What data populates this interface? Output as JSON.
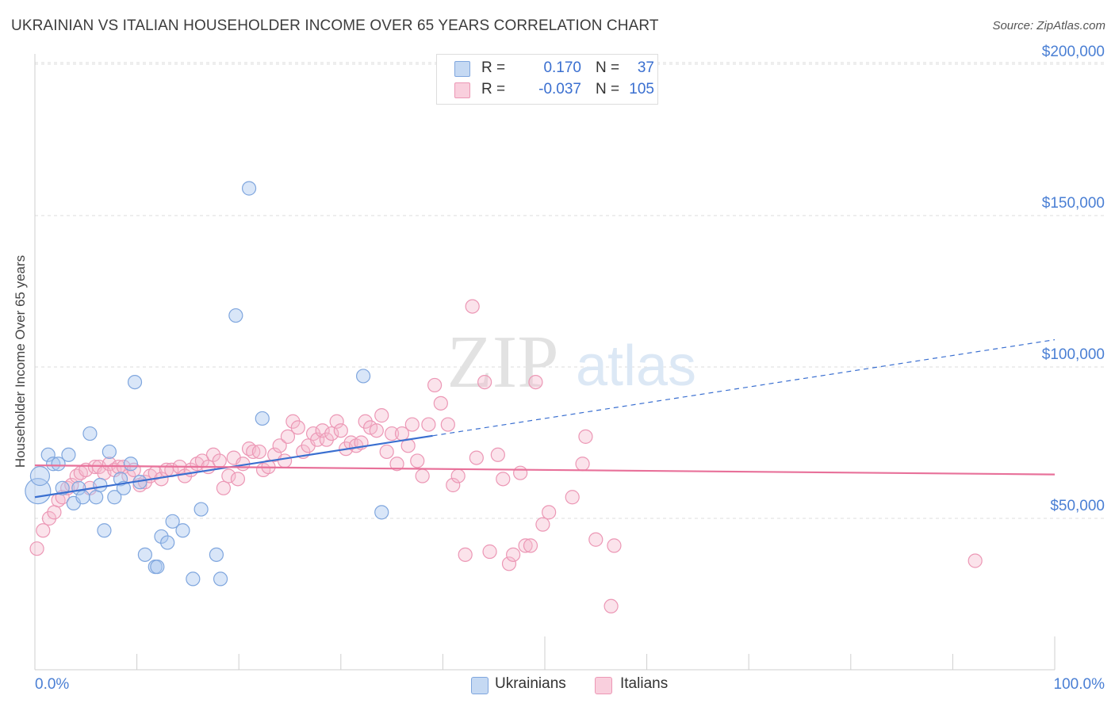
{
  "title": "UKRAINIAN VS ITALIAN HOUSEHOLDER INCOME OVER 65 YEARS CORRELATION CHART",
  "source": "Source: ZipAtlas.com",
  "watermark": {
    "zip": "ZIP",
    "atlas": "atlas"
  },
  "legend": {
    "rows": [
      {
        "r_label": "R =",
        "r_value": "0.170",
        "n_label": "N =",
        "n_value": "37",
        "color": "#aac8f0"
      },
      {
        "r_label": "R =",
        "r_value": "-0.037",
        "n_label": "N =",
        "n_value": "105",
        "color": "#f5b8cc"
      }
    ]
  },
  "bottom_legend": {
    "items": [
      {
        "label": "Ukrainians",
        "color": "#aac8f0"
      },
      {
        "label": "Italians",
        "color": "#f5b8cc"
      }
    ]
  },
  "colors": {
    "blue": "#3a6fd0",
    "blue_fill": "#aac8f0",
    "pink": "#e8719a",
    "pink_fill": "#f5b8cc",
    "grid": "#dddddd",
    "tick_label": "#4a7fd4"
  },
  "chart_data": {
    "type": "scatter",
    "title": "UKRAINIAN VS ITALIAN HOUSEHOLDER INCOME OVER 65 YEARS CORRELATION CHART",
    "xlabel": "",
    "ylabel": "Householder Income Over 65 years",
    "xlim": [
      0,
      100
    ],
    "ylim": [
      0,
      210000
    ],
    "x_tick_labels": [
      "0.0%",
      "100.0%"
    ],
    "y_ticks": [
      50000,
      100000,
      150000,
      200000
    ],
    "y_tick_labels": [
      "$50,000",
      "$100,000",
      "$150,000",
      "$200,000"
    ],
    "grid": true,
    "series": [
      {
        "name": "Ukrainians",
        "color": "#aac8f0",
        "points": [
          [
            0.3,
            59000
          ],
          [
            0.5,
            64000
          ],
          [
            1.3,
            71000
          ],
          [
            1.8,
            68000
          ],
          [
            2.3,
            68000
          ],
          [
            3.3,
            71000
          ],
          [
            2.7,
            60000
          ],
          [
            3.8,
            55000
          ],
          [
            4.3,
            60000
          ],
          [
            4.7,
            57000
          ],
          [
            5.4,
            78000
          ],
          [
            6.0,
            57000
          ],
          [
            6.4,
            61000
          ],
          [
            6.8,
            46000
          ],
          [
            7.3,
            72000
          ],
          [
            7.8,
            57000
          ],
          [
            8.4,
            63000
          ],
          [
            8.7,
            60000
          ],
          [
            9.4,
            68000
          ],
          [
            9.8,
            95000
          ],
          [
            10.3,
            62000
          ],
          [
            10.8,
            38000
          ],
          [
            11.8,
            34000
          ],
          [
            12.0,
            34000
          ],
          [
            12.4,
            44000
          ],
          [
            13.0,
            42000
          ],
          [
            13.5,
            49000
          ],
          [
            14.5,
            46000
          ],
          [
            15.5,
            30000
          ],
          [
            16.3,
            53000
          ],
          [
            17.8,
            38000
          ],
          [
            18.2,
            30000
          ],
          [
            19.7,
            117000
          ],
          [
            21.0,
            159000
          ],
          [
            22.3,
            83000
          ],
          [
            32.2,
            97000
          ],
          [
            34.0,
            52000
          ]
        ],
        "trend": {
          "x": [
            0,
            39.0,
            100
          ],
          "y": [
            57000,
            77000,
            109000
          ],
          "solid_until": 39.0
        }
      },
      {
        "name": "Italians",
        "color": "#f5b8cc",
        "points": [
          [
            0.2,
            40000
          ],
          [
            0.8,
            46000
          ],
          [
            1.4,
            50000
          ],
          [
            1.9,
            52000
          ],
          [
            2.3,
            56000
          ],
          [
            2.7,
            57000
          ],
          [
            3.2,
            60000
          ],
          [
            3.6,
            61000
          ],
          [
            4.1,
            64000
          ],
          [
            4.5,
            65000
          ],
          [
            5.0,
            66000
          ],
          [
            5.4,
            60000
          ],
          [
            5.9,
            67000
          ],
          [
            6.3,
            67000
          ],
          [
            6.8,
            65000
          ],
          [
            7.3,
            68000
          ],
          [
            7.8,
            66000
          ],
          [
            8.2,
            67000
          ],
          [
            8.7,
            67000
          ],
          [
            9.2,
            64000
          ],
          [
            9.7,
            66000
          ],
          [
            10.3,
            61000
          ],
          [
            10.8,
            62000
          ],
          [
            11.3,
            64000
          ],
          [
            11.8,
            65000
          ],
          [
            12.4,
            63000
          ],
          [
            12.9,
            66000
          ],
          [
            13.4,
            66000
          ],
          [
            14.2,
            67000
          ],
          [
            14.7,
            64000
          ],
          [
            15.3,
            66000
          ],
          [
            15.9,
            68000
          ],
          [
            16.4,
            69000
          ],
          [
            17.0,
            67000
          ],
          [
            17.5,
            71000
          ],
          [
            18.1,
            69000
          ],
          [
            18.5,
            60000
          ],
          [
            19.0,
            64000
          ],
          [
            19.5,
            70000
          ],
          [
            19.9,
            63000
          ],
          [
            20.4,
            68000
          ],
          [
            21.0,
            73000
          ],
          [
            21.4,
            72000
          ],
          [
            22.0,
            72000
          ],
          [
            22.4,
            66000
          ],
          [
            22.9,
            67000
          ],
          [
            23.5,
            71000
          ],
          [
            24.0,
            74000
          ],
          [
            24.5,
            69000
          ],
          [
            24.8,
            77000
          ],
          [
            25.3,
            82000
          ],
          [
            25.8,
            80000
          ],
          [
            26.3,
            72000
          ],
          [
            26.8,
            74000
          ],
          [
            27.3,
            78000
          ],
          [
            27.7,
            76000
          ],
          [
            28.2,
            79000
          ],
          [
            28.6,
            76000
          ],
          [
            29.1,
            78000
          ],
          [
            29.6,
            82000
          ],
          [
            30.0,
            79000
          ],
          [
            30.5,
            73000
          ],
          [
            31.0,
            75000
          ],
          [
            31.5,
            74000
          ],
          [
            32.0,
            75000
          ],
          [
            32.4,
            82000
          ],
          [
            32.9,
            80000
          ],
          [
            33.5,
            79000
          ],
          [
            34.0,
            84000
          ],
          [
            34.5,
            72000
          ],
          [
            35.0,
            78000
          ],
          [
            35.5,
            68000
          ],
          [
            36.0,
            78000
          ],
          [
            36.6,
            74000
          ],
          [
            37.0,
            81000
          ],
          [
            37.5,
            69000
          ],
          [
            38.0,
            64000
          ],
          [
            38.6,
            81000
          ],
          [
            39.2,
            94000
          ],
          [
            39.8,
            88000
          ],
          [
            40.5,
            81000
          ],
          [
            41.0,
            61000
          ],
          [
            41.5,
            64000
          ],
          [
            42.2,
            38000
          ],
          [
            42.9,
            120000
          ],
          [
            43.3,
            70000
          ],
          [
            44.1,
            95000
          ],
          [
            44.6,
            39000
          ],
          [
            45.4,
            71000
          ],
          [
            45.9,
            63000
          ],
          [
            46.5,
            35000
          ],
          [
            46.9,
            38000
          ],
          [
            47.6,
            65000
          ],
          [
            48.1,
            41000
          ],
          [
            48.6,
            41000
          ],
          [
            49.1,
            95000
          ],
          [
            49.8,
            48000
          ],
          [
            50.4,
            52000
          ],
          [
            52.7,
            57000
          ],
          [
            53.7,
            68000
          ],
          [
            54.0,
            77000
          ],
          [
            55.0,
            43000
          ],
          [
            56.5,
            21000
          ],
          [
            56.8,
            41000
          ],
          [
            92.2,
            36000
          ]
        ],
        "trend": {
          "x": [
            0,
            100
          ],
          "y": [
            67500,
            64500
          ]
        }
      }
    ]
  }
}
